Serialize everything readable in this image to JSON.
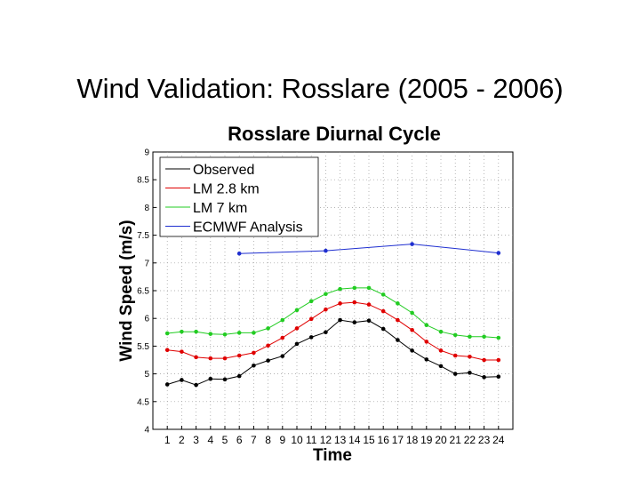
{
  "slide": {
    "title": "Wind Validation: Rosslare (2005 - 2006)"
  },
  "chart_data": {
    "type": "line",
    "title": "Rosslare Diurnal Cycle",
    "xlabel": "Time",
    "ylabel": "Wind Speed (m/s)",
    "xlim": [
      0,
      25
    ],
    "ylim": [
      4,
      9
    ],
    "grid": true,
    "legend_position": "top-left",
    "x": [
      1,
      2,
      3,
      4,
      5,
      6,
      7,
      8,
      9,
      10,
      11,
      12,
      13,
      14,
      15,
      16,
      17,
      18,
      19,
      20,
      21,
      22,
      23,
      24
    ],
    "y_ticks": [
      "4",
      "4.5",
      "5",
      "5.5",
      "6",
      "6.5",
      "7",
      "7.5",
      "8",
      "8.5",
      "9"
    ],
    "x_ticks": [
      "1",
      "2",
      "3",
      "4",
      "5",
      "6",
      "7",
      "8",
      "9",
      "10",
      "11",
      "12",
      "13",
      "14",
      "15",
      "16",
      "17",
      "18",
      "19",
      "20",
      "21",
      "22",
      "23",
      "24"
    ],
    "series": [
      {
        "name": "Observed",
        "color": "#000000",
        "x": [
          1,
          2,
          3,
          4,
          5,
          6,
          7,
          8,
          9,
          10,
          11,
          12,
          13,
          14,
          15,
          16,
          17,
          18,
          19,
          20,
          21,
          22,
          23,
          24
        ],
        "values": [
          4.81,
          4.89,
          4.8,
          4.91,
          4.9,
          4.96,
          5.15,
          5.24,
          5.32,
          5.54,
          5.66,
          5.75,
          5.97,
          5.93,
          5.96,
          5.81,
          5.61,
          5.42,
          5.26,
          5.14,
          5.0,
          5.02,
          4.94,
          4.95
        ]
      },
      {
        "name": "LM 2.8 km",
        "color": "#e00000",
        "x": [
          1,
          2,
          3,
          4,
          5,
          6,
          7,
          8,
          9,
          10,
          11,
          12,
          13,
          14,
          15,
          16,
          17,
          18,
          19,
          20,
          21,
          22,
          23,
          24
        ],
        "values": [
          5.43,
          5.4,
          5.3,
          5.28,
          5.28,
          5.33,
          5.38,
          5.51,
          5.65,
          5.82,
          5.99,
          6.16,
          6.27,
          6.29,
          6.25,
          6.13,
          5.97,
          5.79,
          5.58,
          5.42,
          5.33,
          5.31,
          5.25,
          5.25
        ]
      },
      {
        "name": "LM 7 km",
        "color": "#22cc22",
        "x": [
          1,
          2,
          3,
          4,
          5,
          6,
          7,
          8,
          9,
          10,
          11,
          12,
          13,
          14,
          15,
          16,
          17,
          18,
          19,
          20,
          21,
          22,
          23,
          24
        ],
        "values": [
          5.73,
          5.76,
          5.76,
          5.72,
          5.71,
          5.74,
          5.74,
          5.82,
          5.97,
          6.15,
          6.31,
          6.44,
          6.53,
          6.55,
          6.55,
          6.43,
          6.27,
          6.1,
          5.88,
          5.76,
          5.7,
          5.67,
          5.67,
          5.65
        ]
      },
      {
        "name": "ECMWF Analysis",
        "color": "#1f2fd0",
        "x": [
          6,
          12,
          18,
          24
        ],
        "values": [
          7.17,
          7.22,
          7.34,
          7.18
        ]
      }
    ]
  }
}
